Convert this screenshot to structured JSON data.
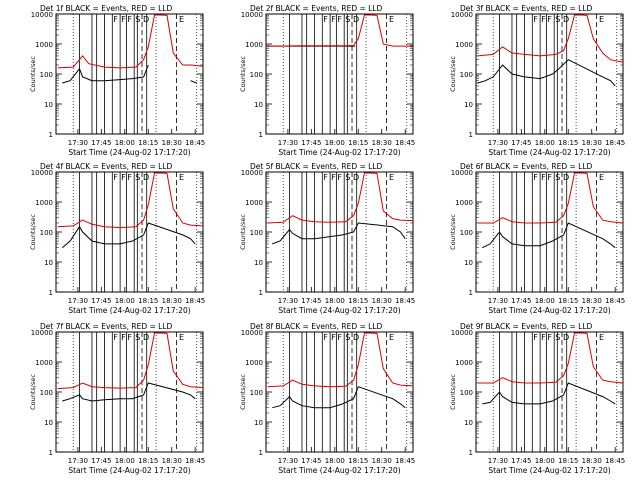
{
  "figure": {
    "xlabel": "Start Time (24-Aug-02 17:17:20)",
    "ylabel": "Counts/sec",
    "x_tick_labels": [
      "17:30",
      "17:45",
      "18:00",
      "18:15",
      "18:30",
      "18:45"
    ],
    "y_tick_labels": [
      "1",
      "10",
      "100",
      "1000",
      "10000"
    ],
    "colors": {
      "events": "#000000",
      "lld": "#dd0000",
      "background": "#ffffff"
    },
    "legend_text": "BLACK = Events, RED = LLD",
    "markers": [
      "F",
      "F",
      "F",
      "S",
      "D",
      "E"
    ]
  },
  "chart_data": [
    {
      "type": "line",
      "title": "Det 1f BLACK = Events, RED = LLD",
      "xlim_min": [
        -1,
        93
      ],
      "y_scale": "log",
      "ylim": [
        1,
        10000
      ],
      "series": [
        {
          "name": "Events",
          "x_min": [
            3,
            8,
            14,
            16,
            22,
            30,
            40,
            48,
            55,
            58,
            62,
            66,
            72,
            78,
            85,
            89
          ],
          "y": [
            50,
            60,
            150,
            80,
            60,
            60,
            65,
            70,
            80,
            200,
            null,
            null,
            null,
            null,
            60,
            50
          ]
        },
        {
          "name": "LLD",
          "x_min": [
            0,
            10,
            16,
            20,
            30,
            40,
            50,
            55,
            58,
            62,
            66,
            70,
            74,
            80,
            85,
            93
          ],
          "y": [
            160,
            170,
            400,
            220,
            170,
            160,
            170,
            300,
            800,
            10000,
            10000,
            9000,
            500,
            200,
            200,
            180
          ]
        }
      ]
    },
    {
      "type": "line",
      "title": "Det 2f BLACK = Events, RED = LLD",
      "xlim_min": [
        -1,
        93
      ],
      "y_scale": "log",
      "ylim": [
        1,
        10000
      ],
      "series": [
        {
          "name": "Events",
          "x_min": [
            1,
            56
          ],
          "y": [
            850,
            850
          ]
        },
        {
          "name": "LLD",
          "x_min": [
            0,
            10,
            20,
            30,
            40,
            50,
            55,
            58,
            62,
            66,
            70,
            74,
            80,
            93
          ],
          "y": [
            850,
            860,
            870,
            870,
            880,
            880,
            900,
            1500,
            10000,
            10000,
            9000,
            1000,
            850,
            850
          ]
        }
      ]
    },
    {
      "type": "line",
      "title": "Det 3f BLACK = Events, RED = LLD",
      "xlim_min": [
        -1,
        93
      ],
      "y_scale": "log",
      "ylim": [
        1,
        10000
      ],
      "series": [
        {
          "name": "Events",
          "x_min": [
            0,
            5,
            10,
            16,
            22,
            30,
            40,
            48,
            52,
            58,
            80,
            85,
            88
          ],
          "y": [
            50,
            60,
            80,
            200,
            100,
            80,
            70,
            100,
            150,
            300,
            80,
            60,
            40
          ]
        },
        {
          "name": "LLD",
          "x_min": [
            0,
            10,
            16,
            22,
            30,
            40,
            50,
            55,
            58,
            62,
            66,
            70,
            74,
            80,
            85,
            93
          ],
          "y": [
            400,
            450,
            800,
            500,
            450,
            400,
            450,
            600,
            1500,
            10000,
            10000,
            9000,
            1500,
            500,
            300,
            250
          ]
        }
      ]
    },
    {
      "type": "line",
      "title": "Det 4f BLACK = Events, RED = LLD",
      "xlim_min": [
        -1,
        93
      ],
      "y_scale": "log",
      "ylim": [
        1,
        10000
      ],
      "series": [
        {
          "name": "Events",
          "x_min": [
            3,
            8,
            14,
            16,
            22,
            30,
            40,
            48,
            55,
            58,
            80,
            85,
            88
          ],
          "y": [
            30,
            50,
            150,
            100,
            50,
            40,
            40,
            50,
            80,
            200,
            80,
            60,
            40
          ]
        },
        {
          "name": "LLD",
          "x_min": [
            0,
            10,
            16,
            22,
            30,
            40,
            50,
            55,
            58,
            62,
            66,
            70,
            74,
            80,
            85,
            93
          ],
          "y": [
            150,
            160,
            250,
            180,
            150,
            140,
            150,
            250,
            800,
            10000,
            10000,
            9000,
            600,
            200,
            170,
            160
          ]
        }
      ]
    },
    {
      "type": "line",
      "title": "Det 5f BLACK = Events, RED = LLD",
      "xlim_min": [
        -1,
        93
      ],
      "y_scale": "log",
      "ylim": [
        1,
        10000
      ],
      "series": [
        {
          "name": "Events",
          "x_min": [
            3,
            8,
            14,
            16,
            22,
            30,
            40,
            48,
            55,
            58,
            80,
            85,
            88
          ],
          "y": [
            40,
            50,
            120,
            90,
            60,
            60,
            70,
            80,
            100,
            200,
            150,
            100,
            60
          ]
        },
        {
          "name": "LLD",
          "x_min": [
            0,
            10,
            16,
            22,
            30,
            40,
            50,
            55,
            58,
            62,
            66,
            70,
            74,
            80,
            85,
            93
          ],
          "y": [
            200,
            210,
            350,
            250,
            220,
            210,
            220,
            350,
            900,
            10000,
            10000,
            9000,
            500,
            280,
            250,
            240
          ]
        }
      ]
    },
    {
      "type": "line",
      "title": "Det 6f BLACK = Events, RED = LLD",
      "xlim_min": [
        -1,
        93
      ],
      "y_scale": "log",
      "ylim": [
        1,
        10000
      ],
      "series": [
        {
          "name": "Events",
          "x_min": [
            3,
            8,
            14,
            16,
            22,
            30,
            40,
            48,
            55,
            58,
            80,
            85,
            88
          ],
          "y": [
            30,
            40,
            100,
            70,
            40,
            35,
            35,
            50,
            80,
            200,
            60,
            40,
            30
          ]
        },
        {
          "name": "LLD",
          "x_min": [
            0,
            10,
            16,
            22,
            30,
            40,
            50,
            55,
            58,
            62,
            66,
            70,
            74,
            80,
            85,
            93
          ],
          "y": [
            200,
            200,
            300,
            220,
            200,
            200,
            210,
            350,
            900,
            10000,
            10000,
            9000,
            700,
            250,
            220,
            200
          ]
        }
      ]
    },
    {
      "type": "line",
      "title": "Det 7f BLACK = Events, RED = LLD",
      "xlim_min": [
        -1,
        93
      ],
      "y_scale": "log",
      "ylim": [
        1,
        10000
      ],
      "series": [
        {
          "name": "Events",
          "x_min": [
            3,
            8,
            14,
            16,
            22,
            30,
            40,
            48,
            55,
            58,
            80,
            85,
            88
          ],
          "y": [
            50,
            60,
            80,
            60,
            50,
            55,
            60,
            60,
            80,
            200,
            100,
            80,
            60
          ]
        },
        {
          "name": "LLD",
          "x_min": [
            0,
            10,
            16,
            22,
            30,
            40,
            50,
            55,
            58,
            62,
            66,
            70,
            74,
            80,
            85,
            93
          ],
          "y": [
            130,
            140,
            200,
            150,
            140,
            135,
            140,
            250,
            800,
            10000,
            10000,
            9000,
            500,
            180,
            150,
            140
          ]
        }
      ]
    },
    {
      "type": "line",
      "title": "Det 8f BLACK = Events, RED = LLD",
      "xlim_min": [
        -1,
        93
      ],
      "y_scale": "log",
      "ylim": [
        1,
        10000
      ],
      "series": [
        {
          "name": "Events",
          "x_min": [
            3,
            8,
            14,
            16,
            22,
            30,
            40,
            48,
            55,
            58,
            80,
            85,
            88
          ],
          "y": [
            30,
            35,
            70,
            50,
            35,
            30,
            30,
            40,
            60,
            150,
            60,
            40,
            30
          ]
        },
        {
          "name": "LLD",
          "x_min": [
            0,
            10,
            16,
            22,
            30,
            40,
            50,
            55,
            58,
            62,
            66,
            70,
            74,
            80,
            85,
            93
          ],
          "y": [
            150,
            160,
            250,
            180,
            160,
            150,
            155,
            250,
            800,
            10000,
            10000,
            9000,
            600,
            200,
            170,
            160
          ]
        }
      ]
    },
    {
      "type": "line",
      "title": "Det 9f BLACK = Events, RED = LLD",
      "xlim_min": [
        -1,
        93
      ],
      "y_scale": "log",
      "ylim": [
        1,
        10000
      ],
      "series": [
        {
          "name": "Events",
          "x_min": [
            3,
            8,
            14,
            16,
            22,
            30,
            40,
            48,
            55,
            58,
            80,
            85,
            88
          ],
          "y": [
            40,
            45,
            100,
            70,
            45,
            40,
            40,
            50,
            80,
            200,
            70,
            50,
            40
          ]
        },
        {
          "name": "LLD",
          "x_min": [
            0,
            10,
            16,
            22,
            30,
            40,
            50,
            55,
            58,
            62,
            66,
            70,
            74,
            80,
            85,
            93
          ],
          "y": [
            200,
            200,
            300,
            220,
            200,
            200,
            210,
            350,
            900,
            10000,
            10000,
            9000,
            700,
            250,
            220,
            200
          ]
        }
      ]
    }
  ]
}
